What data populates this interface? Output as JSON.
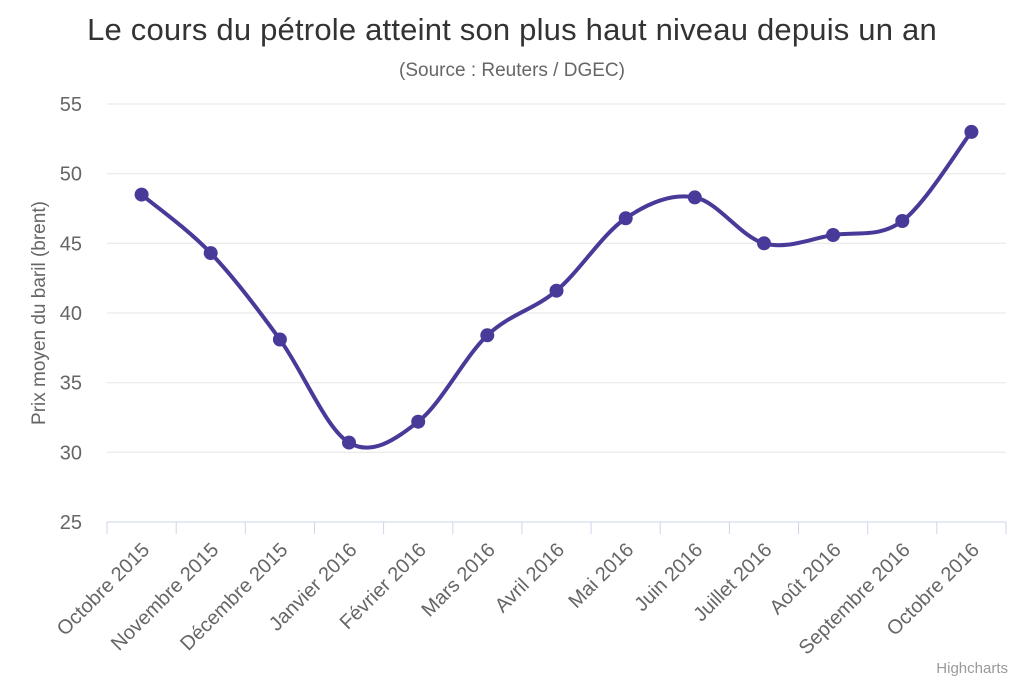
{
  "chart": {
    "credit": "Highcharts"
  },
  "chart_data": {
    "type": "line",
    "line_shape": "spline",
    "title": "Le cours du pétrole atteint son plus haut niveau depuis un an",
    "subtitle": "(Source : Reuters / DGEC)",
    "xlabel": "",
    "ylabel": "Prix moyen du baril (brent)",
    "categories": [
      "Octobre 2015",
      "Novembre 2015",
      "Décembre 2015",
      "Janvier 2016",
      "Février 2016",
      "Mars 2016",
      "Avril 2016",
      "Mai 2016",
      "Juin 2016",
      "Juillet 2016",
      "Août 2016",
      "Septembre 2016",
      "Octobre 2016"
    ],
    "values": [
      48.5,
      44.3,
      38.1,
      30.7,
      32.2,
      38.4,
      41.6,
      46.8,
      48.3,
      45.0,
      45.6,
      46.6,
      53.0
    ],
    "ylim": [
      25,
      55
    ],
    "yticks": [
      25,
      30,
      35,
      40,
      45,
      50,
      55
    ],
    "grid": "horizontal",
    "legend": "none",
    "markers": true,
    "colors": {
      "line": "#483a98",
      "marker": "#483a98",
      "gridline": "#e6e6e6",
      "axis_line": "#ccd6eb",
      "title_text": "#333333",
      "subtitle_text": "#666666",
      "axis_text": "#666666",
      "credit_text": "#999999",
      "background": "#ffffff"
    }
  }
}
